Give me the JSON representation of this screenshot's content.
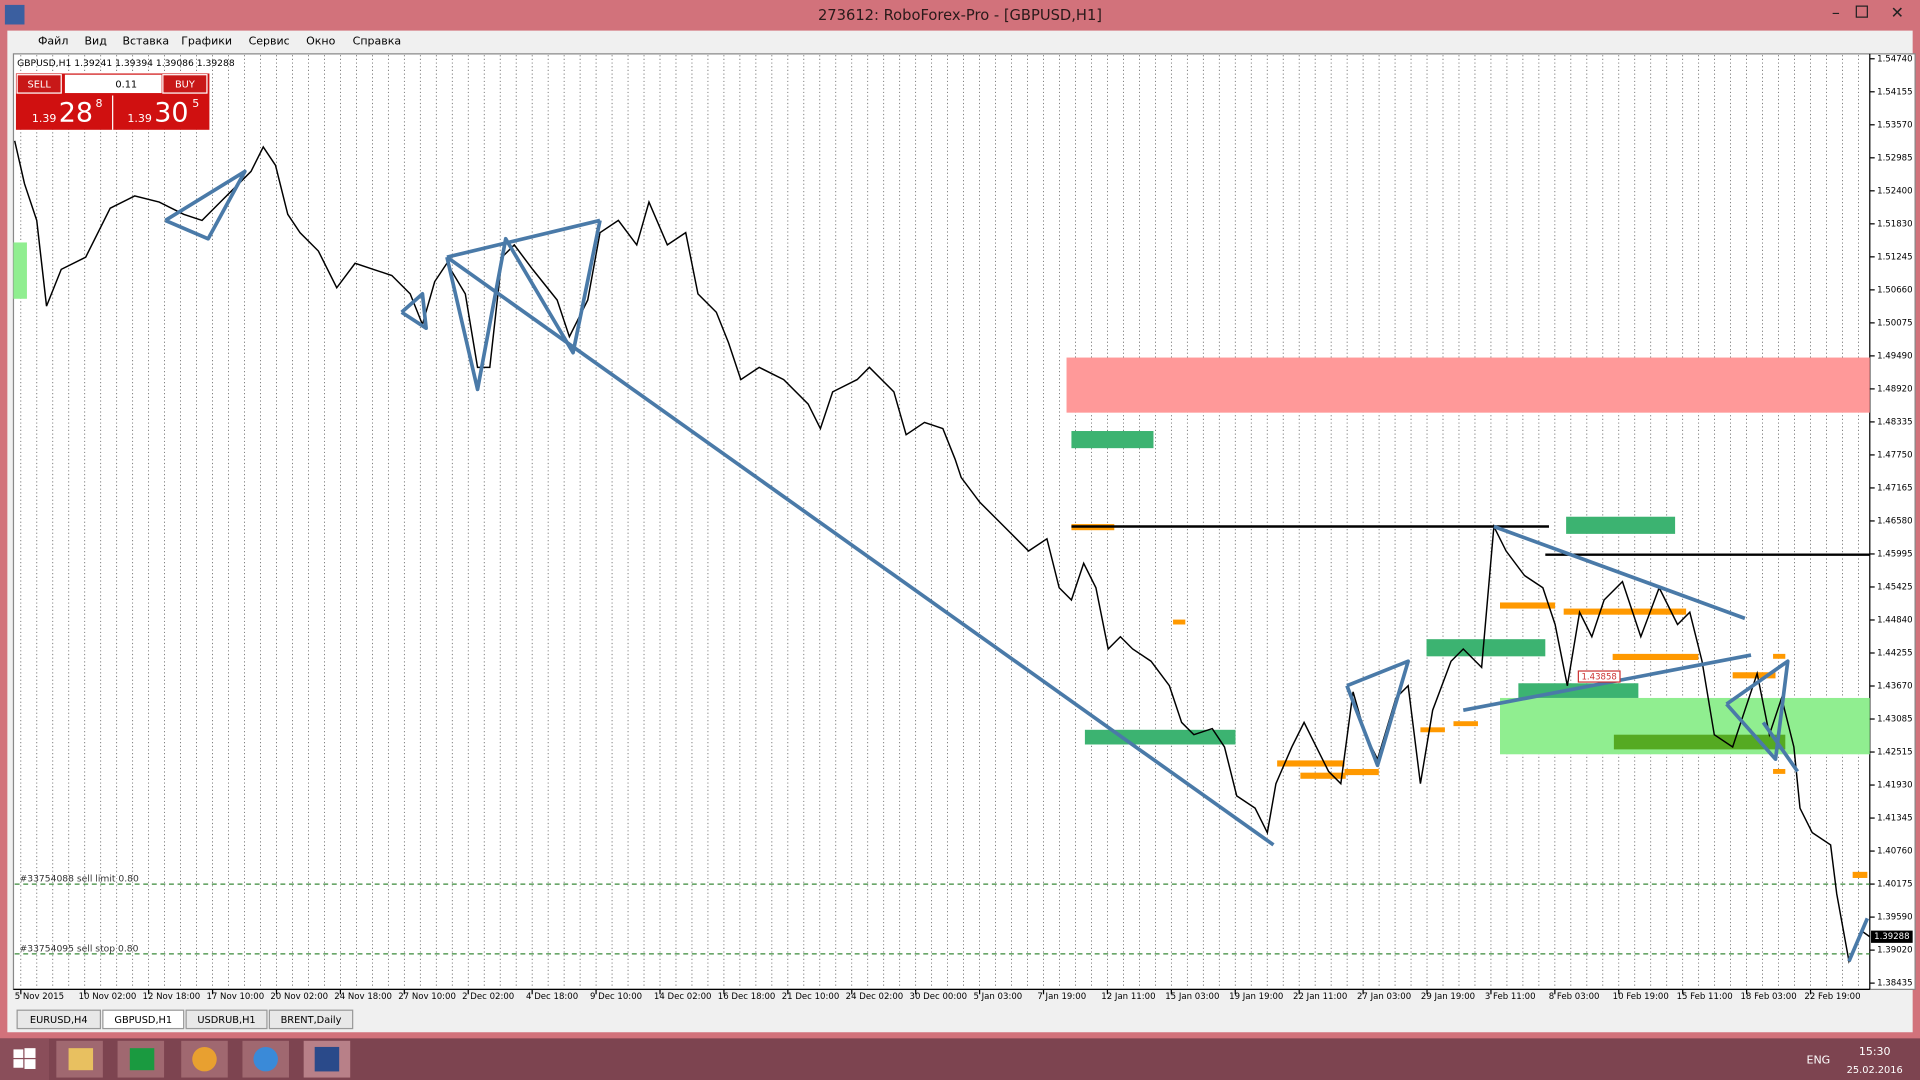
{
  "window": {
    "title": "273612: RoboForex-Pro - [GBPUSD,H1]"
  },
  "menu": [
    "Файл",
    "Вид",
    "Вставка",
    "Графики",
    "Сервис",
    "Окно",
    "Справка"
  ],
  "chart": {
    "header": "GBPUSD,H1  1.39241 1.39394 1.39086 1.39288",
    "price_labels": [
      "1.54740",
      "1.54155",
      "1.53570",
      "1.52985",
      "1.52400",
      "1.51830",
      "1.51245",
      "1.50660",
      "1.50075",
      "1.49490",
      "1.48920",
      "1.48335",
      "1.47750",
      "1.47165",
      "1.46580",
      "1.45995",
      "1.45425",
      "1.44840",
      "1.44255",
      "1.43670",
      "1.43085",
      "1.42515",
      "1.41930",
      "1.41345",
      "1.40760",
      "1.40175",
      "1.39590",
      "1.39020",
      "1.38435"
    ],
    "date_labels": [
      "5 Nov 2015",
      "10 Nov 02:00",
      "12 Nov 18:00",
      "17 Nov 10:00",
      "20 Nov 02:00",
      "24 Nov 18:00",
      "27 Nov 10:00",
      "2 Dec 02:00",
      "4 Dec 18:00",
      "9 Dec 10:00",
      "14 Dec 02:00",
      "16 Dec 18:00",
      "21 Dec 10:00",
      "24 Dec 02:00",
      "30 Dec 00:00",
      "5 Jan 03:00",
      "7 Jan 19:00",
      "12 Jan 11:00",
      "15 Jan 03:00",
      "19 Jan 19:00",
      "22 Jan 11:00",
      "27 Jan 03:00",
      "29 Jan 19:00",
      "3 Feb 11:00",
      "8 Feb 03:00",
      "10 Feb 19:00",
      "15 Feb 11:00",
      "18 Feb 03:00",
      "22 Feb 19:00"
    ],
    "current_price": "1.39288",
    "orders": [
      "#33754088 sell limit 0.80",
      "#33754095 sell stop 0.80"
    ],
    "marker_label": "1.43858"
  },
  "trade_panel": {
    "sell": "SELL",
    "buy": "BUY",
    "lot": "0.11",
    "bid": {
      "big": "1.39",
      "main": "28",
      "small": "8"
    },
    "ask": {
      "big": "1.39",
      "main": "30",
      "small": "5"
    }
  },
  "tabs": [
    "EURUSD,H4",
    "GBPUSD,H1",
    "USDRUB,H1",
    "BRENT,Daily"
  ],
  "taskbar": {
    "language": "ENG",
    "time": "15:30",
    "date": "25.02.2016"
  }
}
